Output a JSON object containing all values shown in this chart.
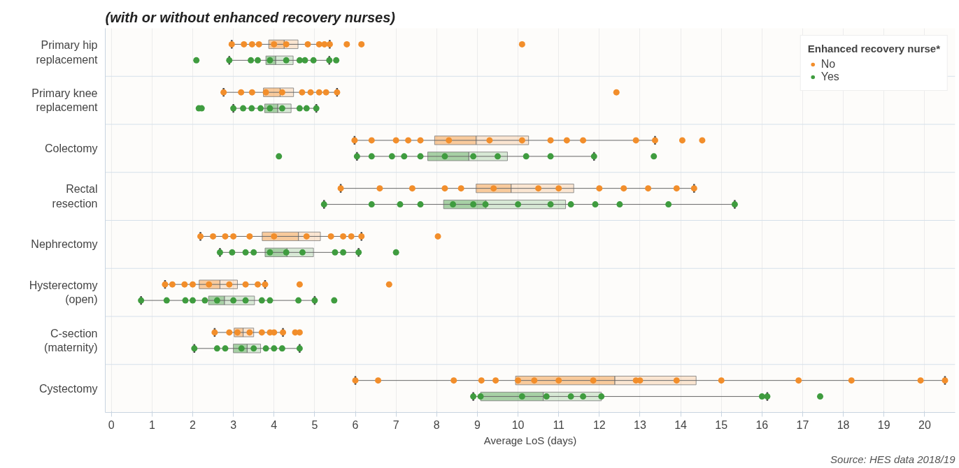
{
  "chart_data": {
    "type": "box",
    "orientation": "horizontal",
    "title": "(with or without enhanced recovery nurses)",
    "xlabel": "Average LoS (days)",
    "legend_title": "Enhanced recovery nurse*",
    "legend": "top right",
    "grid": "x",
    "xlim": [
      -0.15,
      20.75
    ],
    "xticks": [
      0,
      1,
      2,
      3,
      4,
      5,
      6,
      7,
      8,
      9,
      10,
      11,
      12,
      13,
      14,
      15,
      16,
      17,
      18,
      19,
      20
    ],
    "annotations": [
      "Source: HES data 2018/19"
    ],
    "categories": [
      "Primary hip\nreplacement",
      "Primary knee\nreplacement",
      "Colectomy",
      "Rectal\nresection",
      "Nephrectomy",
      "Hysterectomy\n(open)",
      "C-section\n(maternity)",
      "Cystectomy"
    ],
    "series": [
      {
        "type": "box",
        "name": "No",
        "color": "#f28e2b",
        "boxes": [
          {
            "low": 2.96,
            "q1": 3.87,
            "median": 4.25,
            "q3": 4.59,
            "high": 5.37,
            "outliers": [
              5.79,
              6.15,
              10.1
            ]
          },
          {
            "low": 2.76,
            "q1": 3.74,
            "median": 4.15,
            "q3": 4.48,
            "high": 5.55,
            "outliers": [
              12.42
            ]
          },
          {
            "low": 5.98,
            "q1": 7.95,
            "median": 8.97,
            "q3": 10.26,
            "high": 13.37,
            "outliers": [
              14.04,
              14.53
            ]
          },
          {
            "low": 5.64,
            "q1": 8.97,
            "median": 9.83,
            "q3": 11.37,
            "high": 14.33
          },
          {
            "low": 2.19,
            "q1": 3.71,
            "median": 4.6,
            "q3": 5.14,
            "high": 6.15,
            "outliers": [
              8.03
            ]
          },
          {
            "low": 1.32,
            "q1": 2.16,
            "median": 2.67,
            "q3": 3.1,
            "high": 3.78,
            "outliers": [
              4.63,
              6.83
            ]
          },
          {
            "low": 2.54,
            "q1": 3.02,
            "median": 3.24,
            "q3": 3.5,
            "high": 4.22,
            "outliers": [
              4.52,
              4.63
            ]
          },
          {
            "low": 6.0,
            "q1": 9.94,
            "median": 12.38,
            "q3": 14.38,
            "high": 20.5
          }
        ]
      },
      {
        "type": "box",
        "name": "Yes",
        "color": "#3f9c3f",
        "boxes": [
          {
            "low": 2.9,
            "q1": 3.8,
            "median": 4.04,
            "q3": 4.47,
            "high": 5.36,
            "outliers": [
              2.09,
              5.53
            ]
          },
          {
            "low": 3.0,
            "q1": 3.77,
            "median": 4.09,
            "q3": 4.42,
            "high": 5.04,
            "outliers": [
              2.15,
              2.22
            ]
          },
          {
            "low": 6.04,
            "q1": 7.78,
            "median": 8.79,
            "q3": 9.74,
            "high": 11.87,
            "outliers": [
              4.12,
              13.34
            ]
          },
          {
            "low": 5.23,
            "q1": 8.17,
            "median": 9.21,
            "q3": 11.17,
            "high": 15.33
          },
          {
            "low": 2.67,
            "q1": 3.78,
            "median": 4.32,
            "q3": 4.97,
            "high": 6.08,
            "outliers": [
              7.0
            ]
          },
          {
            "low": 0.73,
            "q1": 2.39,
            "median": 2.78,
            "q3": 3.52,
            "high": 5.0,
            "outliers": [
              5.48
            ]
          },
          {
            "low": 2.04,
            "q1": 3.0,
            "median": 3.34,
            "q3": 3.67,
            "high": 4.63
          },
          {
            "low": 8.9,
            "q1": 9.08,
            "median": 10.62,
            "q3": 12.05,
            "high": 16.13,
            "outliers": [
              17.43
            ]
          }
        ]
      },
      {
        "type": "scatter",
        "color": "#f28e2b",
        "x": [
          "Primary hip\nreplacement",
          "Primary hip\nreplacement",
          "Primary hip\nreplacement",
          "Primary hip\nreplacement",
          "Primary hip\nreplacement",
          "Primary hip\nreplacement",
          "Primary hip\nreplacement",
          "Primary hip\nreplacement",
          "Primary hip\nreplacement",
          "Primary hip\nreplacement",
          "Primary knee\nreplacement",
          "Primary knee\nreplacement",
          "Primary knee\nreplacement",
          "Primary knee\nreplacement",
          "Primary knee\nreplacement",
          "Primary knee\nreplacement",
          "Primary knee\nreplacement",
          "Primary knee\nreplacement",
          "Primary knee\nreplacement",
          "Primary knee\nreplacement",
          "Colectomy",
          "Colectomy",
          "Colectomy",
          "Colectomy",
          "Colectomy",
          "Colectomy",
          "Colectomy",
          "Colectomy",
          "Colectomy",
          "Colectomy",
          "Colectomy",
          "Colectomy",
          "Colectomy",
          "Rectal\nresection",
          "Rectal\nresection",
          "Rectal\nresection",
          "Rectal\nresection",
          "Rectal\nresection",
          "Rectal\nresection",
          "Rectal\nresection",
          "Rectal\nresection",
          "Rectal\nresection",
          "Rectal\nresection",
          "Rectal\nresection",
          "Rectal\nresection",
          "Rectal\nresection",
          "Nephrectomy",
          "Nephrectomy",
          "Nephrectomy",
          "Nephrectomy",
          "Nephrectomy",
          "Nephrectomy",
          "Nephrectomy",
          "Nephrectomy",
          "Nephrectomy",
          "Nephrectomy",
          "Nephrectomy",
          "Hysterectomy\n(open)",
          "Hysterectomy\n(open)",
          "Hysterectomy\n(open)",
          "Hysterectomy\n(open)",
          "Hysterectomy\n(open)",
          "Hysterectomy\n(open)",
          "Hysterectomy\n(open)",
          "Hysterectomy\n(open)",
          "Hysterectomy\n(open)",
          "C-section\n(maternity)",
          "C-section\n(maternity)",
          "C-section\n(maternity)",
          "C-section\n(maternity)",
          "C-section\n(maternity)",
          "C-section\n(maternity)",
          "C-section\n(maternity)",
          "C-section\n(maternity)",
          "Cystectomy",
          "Cystectomy",
          "Cystectomy",
          "Cystectomy",
          "Cystectomy",
          "Cystectomy",
          "Cystectomy",
          "Cystectomy",
          "Cystectomy",
          "Cystectomy",
          "Cystectomy",
          "Cystectomy",
          "Cystectomy",
          "Cystectomy",
          "Cystectomy",
          "Cystectomy",
          "Cystectomy"
        ],
        "values": [
          2.96,
          3.26,
          3.46,
          3.63,
          4.0,
          4.3,
          4.83,
          5.11,
          5.24,
          5.37,
          2.76,
          3.19,
          3.46,
          3.8,
          4.2,
          4.69,
          4.9,
          5.11,
          5.28,
          5.55,
          5.98,
          6.4,
          7.0,
          7.3,
          7.6,
          8.3,
          9.3,
          10.1,
          10.8,
          11.2,
          11.6,
          12.9,
          13.37,
          5.64,
          6.6,
          7.4,
          8.2,
          8.6,
          9.4,
          10.5,
          11.0,
          12.0,
          12.6,
          13.2,
          13.9,
          14.33,
          2.19,
          2.5,
          2.8,
          3.0,
          3.4,
          4.0,
          4.8,
          5.4,
          5.7,
          5.9,
          6.15,
          1.32,
          1.5,
          1.8,
          2.0,
          2.4,
          2.9,
          3.3,
          3.6,
          3.78,
          2.54,
          2.9,
          3.1,
          3.4,
          3.7,
          3.9,
          4.0,
          4.22,
          6.0,
          6.56,
          8.42,
          9.1,
          9.45,
          10.0,
          10.4,
          11.0,
          11.85,
          12.9,
          13.0,
          13.9,
          15.0,
          16.9,
          18.2,
          19.9,
          20.5
        ]
      },
      {
        "type": "scatter",
        "color": "#3f9c3f",
        "x": [
          "Primary hip\nreplacement",
          "Primary hip\nreplacement",
          "Primary hip\nreplacement",
          "Primary hip\nreplacement",
          "Primary hip\nreplacement",
          "Primary hip\nreplacement",
          "Primary hip\nreplacement",
          "Primary hip\nreplacement",
          "Primary hip\nreplacement",
          "Primary knee\nreplacement",
          "Primary knee\nreplacement",
          "Primary knee\nreplacement",
          "Primary knee\nreplacement",
          "Primary knee\nreplacement",
          "Primary knee\nreplacement",
          "Primary knee\nreplacement",
          "Primary knee\nreplacement",
          "Primary knee\nreplacement",
          "Colectomy",
          "Colectomy",
          "Colectomy",
          "Colectomy",
          "Colectomy",
          "Colectomy",
          "Colectomy",
          "Colectomy",
          "Colectomy",
          "Colectomy",
          "Colectomy",
          "Rectal\nresection",
          "Rectal\nresection",
          "Rectal\nresection",
          "Rectal\nresection",
          "Rectal\nresection",
          "Rectal\nresection",
          "Rectal\nresection",
          "Rectal\nresection",
          "Rectal\nresection",
          "Rectal\nresection",
          "Rectal\nresection",
          "Rectal\nresection",
          "Rectal\nresection",
          "Rectal\nresection",
          "Nephrectomy",
          "Nephrectomy",
          "Nephrectomy",
          "Nephrectomy",
          "Nephrectomy",
          "Nephrectomy",
          "Nephrectomy",
          "Nephrectomy",
          "Nephrectomy",
          "Nephrectomy",
          "Hysterectomy\n(open)",
          "Hysterectomy\n(open)",
          "Hysterectomy\n(open)",
          "Hysterectomy\n(open)",
          "Hysterectomy\n(open)",
          "Hysterectomy\n(open)",
          "Hysterectomy\n(open)",
          "Hysterectomy\n(open)",
          "Hysterectomy\n(open)",
          "Hysterectomy\n(open)",
          "Hysterectomy\n(open)",
          "Hysterectomy\n(open)",
          "C-section\n(maternity)",
          "C-section\n(maternity)",
          "C-section\n(maternity)",
          "C-section\n(maternity)",
          "C-section\n(maternity)",
          "C-section\n(maternity)",
          "C-section\n(maternity)",
          "C-section\n(maternity)",
          "C-section\n(maternity)",
          "Cystectomy",
          "Cystectomy",
          "Cystectomy",
          "Cystectomy",
          "Cystectomy",
          "Cystectomy",
          "Cystectomy",
          "Cystectomy",
          "Cystectomy"
        ],
        "values": [
          2.9,
          3.43,
          3.6,
          3.9,
          4.3,
          4.63,
          4.76,
          4.97,
          5.36,
          3.0,
          3.24,
          3.45,
          3.67,
          3.9,
          4.2,
          4.63,
          4.8,
          5.04,
          6.04,
          6.4,
          6.9,
          7.2,
          7.6,
          8.2,
          8.9,
          9.5,
          10.2,
          10.8,
          11.87,
          5.23,
          6.4,
          7.1,
          7.6,
          8.4,
          8.9,
          9.2,
          10.0,
          10.8,
          11.3,
          11.9,
          12.5,
          13.7,
          15.33,
          2.67,
          2.97,
          3.3,
          3.5,
          3.9,
          4.3,
          4.7,
          5.5,
          5.7,
          6.08,
          0.73,
          1.36,
          1.82,
          2.0,
          2.3,
          2.6,
          3.0,
          3.3,
          3.7,
          3.9,
          4.6,
          5.0,
          2.04,
          2.6,
          2.8,
          3.2,
          3.5,
          3.8,
          4.0,
          4.2,
          4.63,
          8.9,
          9.08,
          10.1,
          10.7,
          11.3,
          11.6,
          12.05,
          16.0,
          16.13
        ]
      }
    ]
  }
}
